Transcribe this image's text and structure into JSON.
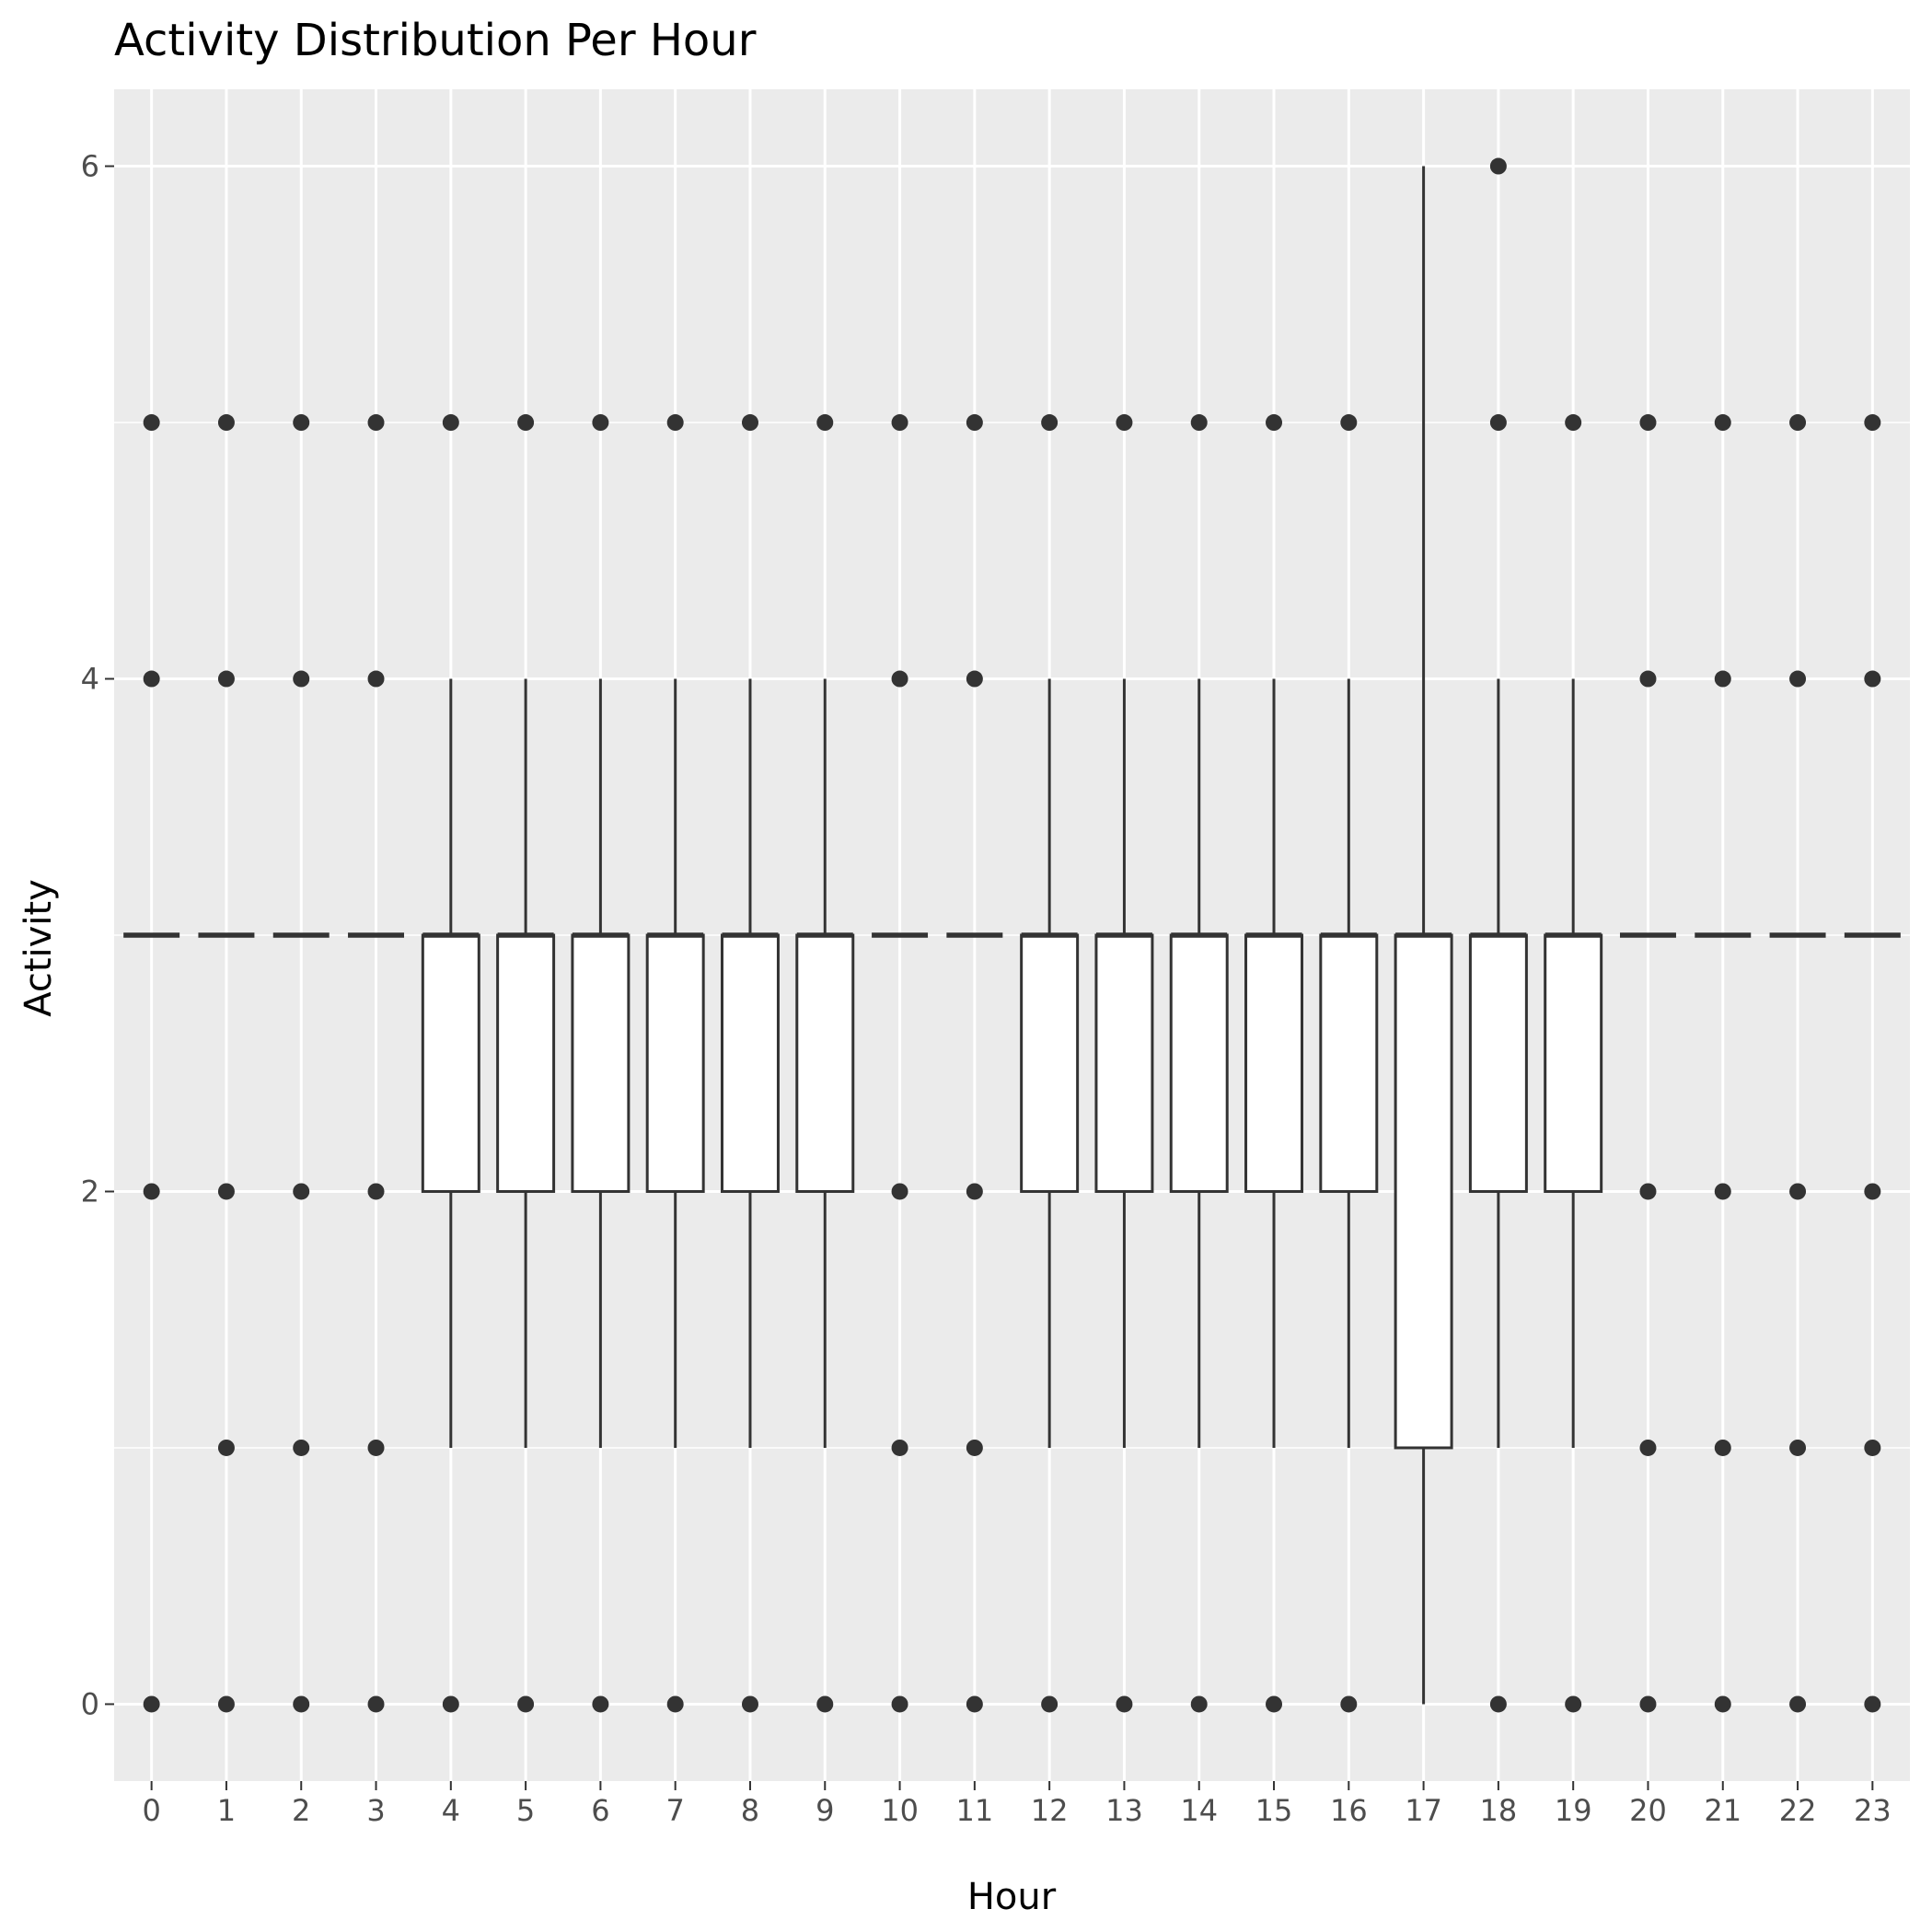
{
  "chart_data": {
    "type": "boxplot",
    "title": "Activity Distribution Per Hour",
    "xlabel": "Hour",
    "ylabel": "Activity",
    "categories": [
      "0",
      "1",
      "2",
      "3",
      "4",
      "5",
      "6",
      "7",
      "8",
      "9",
      "10",
      "11",
      "12",
      "13",
      "14",
      "15",
      "16",
      "17",
      "18",
      "19",
      "20",
      "21",
      "22",
      "23"
    ],
    "y_ticks": [
      0,
      2,
      4,
      6
    ],
    "ylim": [
      -0.3,
      6.3
    ],
    "grid": true,
    "colors": {
      "panel": "#ebebeb",
      "grid": "#ffffff",
      "box_fill": "#ffffff",
      "stroke": "#333333",
      "point": "#333333"
    },
    "boxes": [
      {
        "hour": "0",
        "lower_whisker": 3,
        "q1": 3,
        "median": 3,
        "q3": 3,
        "upper_whisker": 3,
        "outliers": [
          0,
          2,
          4,
          5
        ]
      },
      {
        "hour": "1",
        "lower_whisker": 3,
        "q1": 3,
        "median": 3,
        "q3": 3,
        "upper_whisker": 3,
        "outliers": [
          0,
          1,
          2,
          4,
          5
        ]
      },
      {
        "hour": "2",
        "lower_whisker": 3,
        "q1": 3,
        "median": 3,
        "q3": 3,
        "upper_whisker": 3,
        "outliers": [
          0,
          1,
          2,
          4,
          5
        ]
      },
      {
        "hour": "3",
        "lower_whisker": 3,
        "q1": 3,
        "median": 3,
        "q3": 3,
        "upper_whisker": 3,
        "outliers": [
          0,
          1,
          2,
          4,
          5
        ]
      },
      {
        "hour": "4",
        "lower_whisker": 1,
        "q1": 2,
        "median": 3,
        "q3": 3,
        "upper_whisker": 4,
        "outliers": [
          0,
          5
        ]
      },
      {
        "hour": "5",
        "lower_whisker": 1,
        "q1": 2,
        "median": 3,
        "q3": 3,
        "upper_whisker": 4,
        "outliers": [
          0,
          5
        ]
      },
      {
        "hour": "6",
        "lower_whisker": 1,
        "q1": 2,
        "median": 3,
        "q3": 3,
        "upper_whisker": 4,
        "outliers": [
          0,
          5
        ]
      },
      {
        "hour": "7",
        "lower_whisker": 1,
        "q1": 2,
        "median": 3,
        "q3": 3,
        "upper_whisker": 4,
        "outliers": [
          0,
          5
        ]
      },
      {
        "hour": "8",
        "lower_whisker": 1,
        "q1": 2,
        "median": 3,
        "q3": 3,
        "upper_whisker": 4,
        "outliers": [
          0,
          5
        ]
      },
      {
        "hour": "9",
        "lower_whisker": 1,
        "q1": 2,
        "median": 3,
        "q3": 3,
        "upper_whisker": 4,
        "outliers": [
          0,
          5
        ]
      },
      {
        "hour": "10",
        "lower_whisker": 3,
        "q1": 3,
        "median": 3,
        "q3": 3,
        "upper_whisker": 3,
        "outliers": [
          0,
          1,
          2,
          4,
          5
        ]
      },
      {
        "hour": "11",
        "lower_whisker": 3,
        "q1": 3,
        "median": 3,
        "q3": 3,
        "upper_whisker": 3,
        "outliers": [
          0,
          1,
          2,
          4,
          5
        ]
      },
      {
        "hour": "12",
        "lower_whisker": 1,
        "q1": 2,
        "median": 3,
        "q3": 3,
        "upper_whisker": 4,
        "outliers": [
          0,
          5
        ]
      },
      {
        "hour": "13",
        "lower_whisker": 1,
        "q1": 2,
        "median": 3,
        "q3": 3,
        "upper_whisker": 4,
        "outliers": [
          0,
          5
        ]
      },
      {
        "hour": "14",
        "lower_whisker": 1,
        "q1": 2,
        "median": 3,
        "q3": 3,
        "upper_whisker": 4,
        "outliers": [
          0,
          5
        ]
      },
      {
        "hour": "15",
        "lower_whisker": 1,
        "q1": 2,
        "median": 3,
        "q3": 3,
        "upper_whisker": 4,
        "outliers": [
          0,
          5
        ]
      },
      {
        "hour": "16",
        "lower_whisker": 1,
        "q1": 2,
        "median": 3,
        "q3": 3,
        "upper_whisker": 4,
        "outliers": [
          0,
          5
        ]
      },
      {
        "hour": "17",
        "lower_whisker": 0,
        "q1": 1,
        "median": 3,
        "q3": 3,
        "upper_whisker": 6,
        "outliers": []
      },
      {
        "hour": "18",
        "lower_whisker": 1,
        "q1": 2,
        "median": 3,
        "q3": 3,
        "upper_whisker": 4,
        "outliers": [
          0,
          5,
          6
        ]
      },
      {
        "hour": "19",
        "lower_whisker": 1,
        "q1": 2,
        "median": 3,
        "q3": 3,
        "upper_whisker": 4,
        "outliers": [
          0,
          5
        ]
      },
      {
        "hour": "20",
        "lower_whisker": 3,
        "q1": 3,
        "median": 3,
        "q3": 3,
        "upper_whisker": 3,
        "outliers": [
          0,
          1,
          2,
          4,
          5
        ]
      },
      {
        "hour": "21",
        "lower_whisker": 3,
        "q1": 3,
        "median": 3,
        "q3": 3,
        "upper_whisker": 3,
        "outliers": [
          0,
          1,
          2,
          4,
          5
        ]
      },
      {
        "hour": "22",
        "lower_whisker": 3,
        "q1": 3,
        "median": 3,
        "q3": 3,
        "upper_whisker": 3,
        "outliers": [
          0,
          1,
          2,
          4,
          5
        ]
      },
      {
        "hour": "23",
        "lower_whisker": 3,
        "q1": 3,
        "median": 3,
        "q3": 3,
        "upper_whisker": 3,
        "outliers": [
          0,
          1,
          2,
          4,
          5
        ]
      }
    ]
  }
}
